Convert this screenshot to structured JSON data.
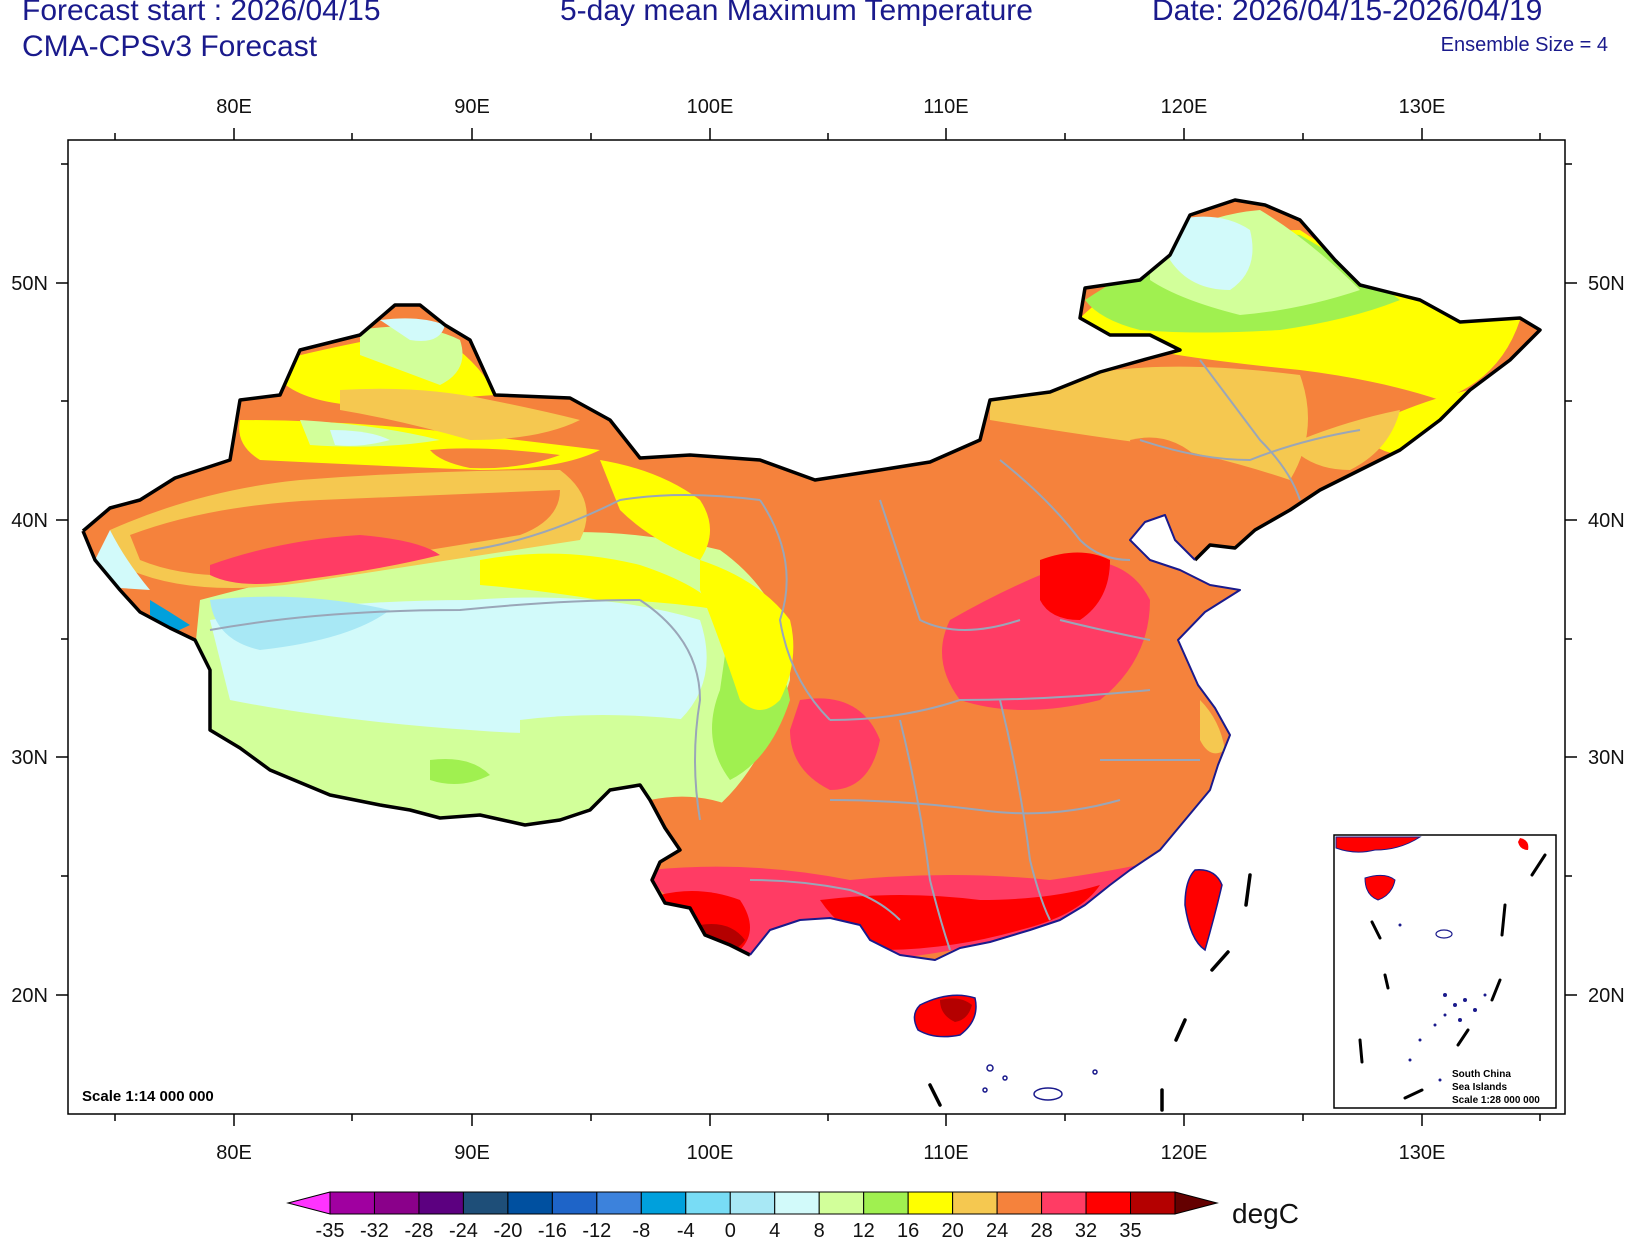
{
  "header": {
    "forecast_start": "Forecast start : 2026/04/15",
    "model": "CMA-CPSv3 Forecast",
    "title": "5-day mean Maximum Temperature",
    "date_range": "Date: 2026/04/15-2026/04/19",
    "ensemble": "Ensemble Size = 4"
  },
  "axes": {
    "lon_labels": [
      "80E",
      "90E",
      "100E",
      "110E",
      "120E",
      "130E"
    ],
    "lat_labels": [
      "50N",
      "40N",
      "30N",
      "20N"
    ]
  },
  "scale_note": "Scale 1:14 000 000",
  "inset": {
    "line1": "South China",
    "line2": "Sea Islands",
    "line3": "Scale 1:28 000 000"
  },
  "colorbar": {
    "unit": "degC",
    "levels": [
      "-35",
      "-32",
      "-28",
      "-24",
      "-20",
      "-16",
      "-12",
      "-8",
      "-4",
      "0",
      "4",
      "8",
      "12",
      "16",
      "20",
      "24",
      "28",
      "32",
      "35"
    ],
    "colors": [
      "#ff33ff",
      "#a000a0",
      "#8a008a",
      "#5c0080",
      "#1e4e78",
      "#0050a0",
      "#1e64c8",
      "#3c82dc",
      "#00a0dc",
      "#78dcf5",
      "#a8e8f5",
      "#d2fafa",
      "#d2ff9a",
      "#a0f050",
      "#ffff00",
      "#f5c850",
      "#f5823c",
      "#ff3c64",
      "#ff0000",
      "#b40000",
      "#640000"
    ]
  },
  "palette": {
    "bands": [
      "#a8e8f5",
      "#d2fafa",
      "#d2ff9a",
      "#a0f050",
      "#ffff00",
      "#f5c850",
      "#f5823c",
      "#ff3c64",
      "#ff0000",
      "#b40000"
    ],
    "ocean": "#ffffff",
    "text_color": "#1a1a8c"
  }
}
